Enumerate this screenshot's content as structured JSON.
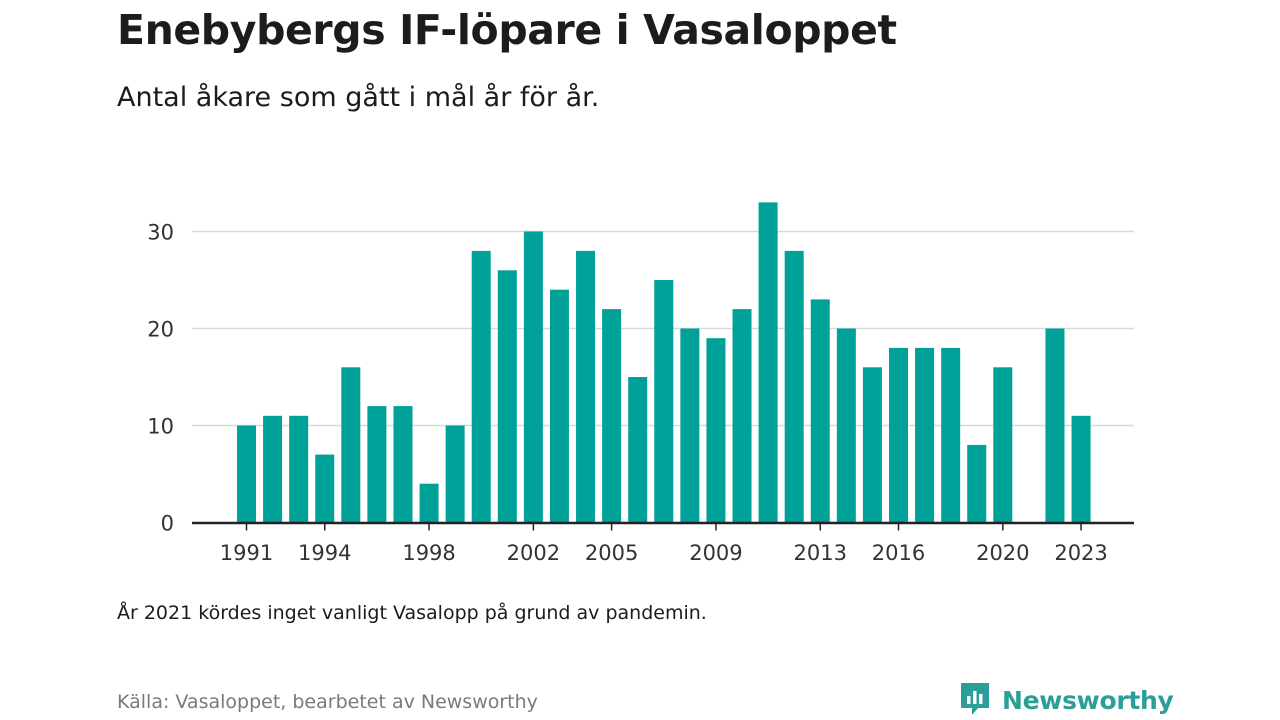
{
  "header": {
    "title": "Enebybergs IF-löpare i Vasaloppet",
    "subtitle": "Antal åkare som gått i mål år för år."
  },
  "footer": {
    "note": "År 2021 kördes inget vanligt Vasalopp på grund av pandemin.",
    "source": "Källa: Vasaloppet, bearbetet av Newsworthy",
    "brand": "Newsworthy",
    "brand_icon": "newsworthy-logo-icon"
  },
  "colors": {
    "bar": "#00a199",
    "grid": "#d9d9d9",
    "axis": "#222222",
    "brand": "#2a9f98"
  },
  "chart_data": {
    "type": "bar",
    "title": "Enebybergs IF-löpare i Vasaloppet",
    "subtitle": "Antal åkare som gått i mål år för år.",
    "xlabel": "",
    "ylabel": "",
    "ylim": [
      0,
      35
    ],
    "yticks": [
      0,
      10,
      20,
      30
    ],
    "xticks": [
      1991,
      1994,
      1998,
      2002,
      2005,
      2009,
      2013,
      2016,
      2020,
      2023
    ],
    "grid": true,
    "categories": [
      1991,
      1992,
      1993,
      1994,
      1995,
      1996,
      1997,
      1998,
      1999,
      2000,
      2001,
      2002,
      2003,
      2004,
      2005,
      2006,
      2007,
      2008,
      2009,
      2010,
      2011,
      2012,
      2013,
      2014,
      2015,
      2016,
      2017,
      2018,
      2019,
      2020,
      2021,
      2022,
      2023
    ],
    "values": [
      10,
      11,
      11,
      7,
      16,
      12,
      12,
      4,
      10,
      28,
      26,
      30,
      24,
      28,
      22,
      15,
      25,
      20,
      19,
      22,
      33,
      28,
      23,
      20,
      16,
      18,
      18,
      18,
      8,
      16,
      null,
      20,
      11
    ]
  }
}
